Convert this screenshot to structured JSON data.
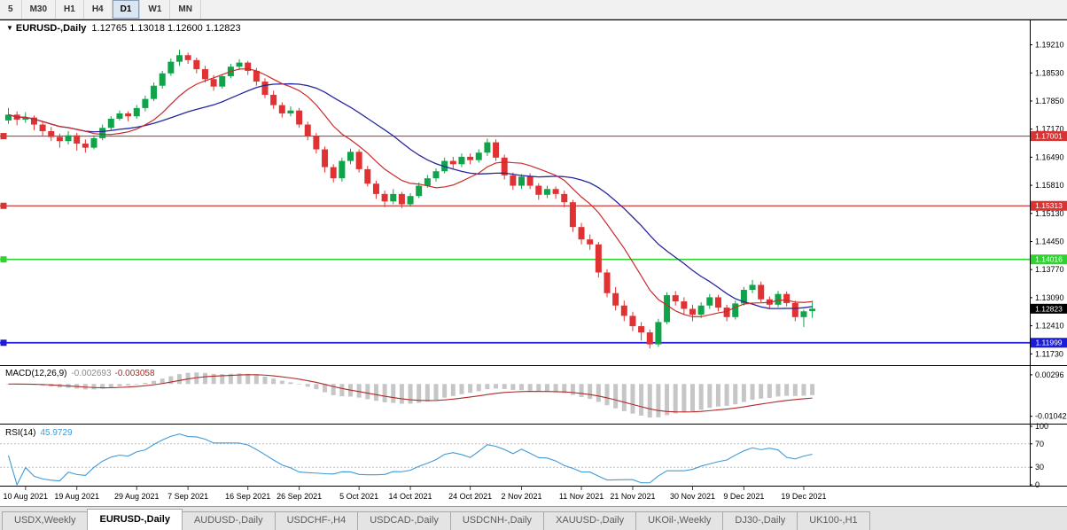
{
  "toolbar": {
    "timeframe_buttons": [
      "5",
      "M30",
      "H1",
      "H4",
      "D1",
      "W1",
      "MN"
    ],
    "active_timeframe": "D1"
  },
  "chart_header": {
    "dropdown_icon": "▼",
    "title": "EURUSD-,Daily",
    "ohlc": "1.12765 1.13018 1.12600 1.12823"
  },
  "indicator_labels": {
    "macd_title": "MACD(12,26,9)",
    "macd_main_value": "-0.002693",
    "macd_signal_value": "-0.003058",
    "rsi_title": "RSI(14)",
    "rsi_value": "45.9729"
  },
  "chart_data": {
    "type": "candlestick",
    "symbol": "EURUSD-",
    "period": "Daily",
    "price_axis_labels": [
      "1.19210",
      "1.18530",
      "1.17850",
      "1.17170",
      "1.16490",
      "1.15810",
      "1.15130",
      "1.14450",
      "1.13770",
      "1.13090",
      "1.12410",
      "1.11730"
    ],
    "macd_axis_labels": [
      "0.00296",
      "-0.01042"
    ],
    "rsi_axis_labels": [
      "100",
      "70",
      "30",
      "0"
    ],
    "rsi_levels": [
      70,
      30
    ],
    "date_labels": [
      "10 Aug 2021",
      "19 Aug 2021",
      "29 Aug 2021",
      "7 Sep 2021",
      "16 Sep 2021",
      "26 Sep 2021",
      "5 Oct 2021",
      "14 Oct 2021",
      "24 Oct 2021",
      "2 Nov 2021",
      "11 Nov 2021",
      "21 Nov 2021",
      "30 Nov 2021",
      "9 Dec 2021",
      "19 Dec 2021"
    ],
    "date_label_indices": [
      2,
      8,
      15,
      21,
      28,
      34,
      41,
      47,
      54,
      60,
      67,
      73,
      80,
      86,
      93
    ],
    "levels": [
      {
        "price": 1.17001,
        "label": "1.17001",
        "color": "#d83434",
        "width": 1.2
      },
      {
        "price": 1.15313,
        "label": "1.15313",
        "color": "#d83434",
        "width": 1.2
      },
      {
        "price": 1.14016,
        "label": "1.14016",
        "color": "#2fd32f",
        "width": 1.6
      },
      {
        "price": 1.11999,
        "label": "1.11999",
        "color": "#1b1bd8",
        "width": 1.8
      }
    ],
    "bid": {
      "price": 1.12823,
      "label": "1.12823",
      "bg": "#000000"
    },
    "colors": {
      "up": "#0fa34a",
      "down": "#e03232",
      "ma_fast": "#cc2929",
      "ma_slow": "#26269e",
      "macd_hist": "#c6c6c6",
      "macd_signal": "#b02a2a",
      "rsi": "#3f9bd8"
    },
    "ma_periods": {
      "fast": 10,
      "slow": 20
    },
    "macd_params": [
      12,
      26,
      9
    ],
    "rsi_period": 14,
    "candles": [
      [
        1.1738,
        1.1768,
        1.173,
        1.1752
      ],
      [
        1.1752,
        1.176,
        1.1726,
        1.174
      ],
      [
        1.174,
        1.1758,
        1.1732,
        1.1745
      ],
      [
        1.1745,
        1.175,
        1.1714,
        1.1728
      ],
      [
        1.1728,
        1.1736,
        1.17,
        1.1712
      ],
      [
        1.1712,
        1.1722,
        1.1688,
        1.1698
      ],
      [
        1.1698,
        1.1706,
        1.1672,
        1.1688
      ],
      [
        1.1688,
        1.1712,
        1.168,
        1.1702
      ],
      [
        1.1702,
        1.1708,
        1.1665,
        1.1682
      ],
      [
        1.1682,
        1.1692,
        1.166,
        1.1672
      ],
      [
        1.1672,
        1.1702,
        1.1668,
        1.1695
      ],
      [
        1.1695,
        1.1728,
        1.169,
        1.172
      ],
      [
        1.172,
        1.1748,
        1.1715,
        1.1742
      ],
      [
        1.1742,
        1.1762,
        1.1738,
        1.1755
      ],
      [
        1.1755,
        1.176,
        1.1736,
        1.1748
      ],
      [
        1.1748,
        1.1775,
        1.1742,
        1.1768
      ],
      [
        1.1768,
        1.1798,
        1.176,
        1.179
      ],
      [
        1.179,
        1.183,
        1.1785,
        1.1822
      ],
      [
        1.1822,
        1.1858,
        1.1815,
        1.1852
      ],
      [
        1.1852,
        1.1888,
        1.1846,
        1.188
      ],
      [
        1.188,
        1.1909,
        1.187,
        1.1896
      ],
      [
        1.1896,
        1.1902,
        1.1875,
        1.1884
      ],
      [
        1.1884,
        1.189,
        1.1852,
        1.1862
      ],
      [
        1.1862,
        1.187,
        1.183,
        1.1838
      ],
      [
        1.1838,
        1.1848,
        1.181,
        1.182
      ],
      [
        1.182,
        1.185,
        1.1815,
        1.1845
      ],
      [
        1.1845,
        1.1875,
        1.184,
        1.1868
      ],
      [
        1.1868,
        1.1886,
        1.186,
        1.1878
      ],
      [
        1.1878,
        1.1882,
        1.1848,
        1.1858
      ],
      [
        1.1858,
        1.1865,
        1.1822,
        1.1832
      ],
      [
        1.1832,
        1.184,
        1.1792,
        1.18
      ],
      [
        1.18,
        1.181,
        1.1766,
        1.1775
      ],
      [
        1.1775,
        1.1782,
        1.1745,
        1.1755
      ],
      [
        1.1755,
        1.1772,
        1.1748,
        1.1762
      ],
      [
        1.1762,
        1.1768,
        1.172,
        1.1728
      ],
      [
        1.1728,
        1.1735,
        1.169,
        1.17
      ],
      [
        1.17,
        1.1708,
        1.1658,
        1.1668
      ],
      [
        1.1668,
        1.1675,
        1.1612,
        1.1625
      ],
      [
        1.1625,
        1.1632,
        1.1588,
        1.1598
      ],
      [
        1.1598,
        1.1648,
        1.159,
        1.164
      ],
      [
        1.164,
        1.167,
        1.1632,
        1.1662
      ],
      [
        1.1662,
        1.1668,
        1.1612,
        1.162
      ],
      [
        1.162,
        1.1628,
        1.1578,
        1.1585
      ],
      [
        1.1585,
        1.1592,
        1.1548,
        1.156
      ],
      [
        1.156,
        1.1568,
        1.1528,
        1.1542
      ],
      [
        1.1542,
        1.1572,
        1.1535,
        1.156
      ],
      [
        1.156,
        1.1565,
        1.1526,
        1.1535
      ],
      [
        1.1535,
        1.1562,
        1.1529,
        1.1555
      ],
      [
        1.1555,
        1.1588,
        1.155,
        1.158
      ],
      [
        1.158,
        1.1606,
        1.1575,
        1.1598
      ],
      [
        1.1598,
        1.1622,
        1.159,
        1.1615
      ],
      [
        1.1615,
        1.1648,
        1.161,
        1.164
      ],
      [
        1.164,
        1.165,
        1.1622,
        1.1632
      ],
      [
        1.1632,
        1.1658,
        1.1625,
        1.165
      ],
      [
        1.165,
        1.1658,
        1.1632,
        1.1642
      ],
      [
        1.1642,
        1.1668,
        1.1636,
        1.166
      ],
      [
        1.166,
        1.1694,
        1.1652,
        1.1685
      ],
      [
        1.1685,
        1.1692,
        1.164,
        1.1648
      ],
      [
        1.1648,
        1.1655,
        1.1595,
        1.1605
      ],
      [
        1.1605,
        1.1612,
        1.157,
        1.158
      ],
      [
        1.158,
        1.1608,
        1.1572,
        1.1602
      ],
      [
        1.1602,
        1.161,
        1.1572,
        1.158
      ],
      [
        1.158,
        1.1586,
        1.1546,
        1.1558
      ],
      [
        1.1558,
        1.158,
        1.155,
        1.1572
      ],
      [
        1.1572,
        1.1578,
        1.1548,
        1.156
      ],
      [
        1.156,
        1.1568,
        1.1528,
        1.154
      ],
      [
        1.154,
        1.1546,
        1.1468,
        1.148
      ],
      [
        1.148,
        1.149,
        1.1438,
        1.145
      ],
      [
        1.145,
        1.1462,
        1.1425,
        1.1438
      ],
      [
        1.1438,
        1.1444,
        1.1358,
        1.137
      ],
      [
        1.137,
        1.1378,
        1.131,
        1.132
      ],
      [
        1.132,
        1.1335,
        1.1278,
        1.129
      ],
      [
        1.129,
        1.1302,
        1.1252,
        1.1265
      ],
      [
        1.1265,
        1.1275,
        1.1228,
        1.124
      ],
      [
        1.124,
        1.125,
        1.1205,
        1.1225
      ],
      [
        1.1225,
        1.1232,
        1.1186,
        1.1196
      ],
      [
        1.1196,
        1.1258,
        1.119,
        1.125
      ],
      [
        1.125,
        1.1322,
        1.1245,
        1.1315
      ],
      [
        1.1315,
        1.1325,
        1.129,
        1.13
      ],
      [
        1.13,
        1.131,
        1.1268,
        1.1282
      ],
      [
        1.1282,
        1.1292,
        1.1252,
        1.1268
      ],
      [
        1.1268,
        1.1298,
        1.126,
        1.129
      ],
      [
        1.129,
        1.1318,
        1.1282,
        1.131
      ],
      [
        1.131,
        1.1316,
        1.1276,
        1.1285
      ],
      [
        1.1285,
        1.1292,
        1.1252,
        1.1262
      ],
      [
        1.1262,
        1.1302,
        1.1256,
        1.1295
      ],
      [
        1.1295,
        1.1335,
        1.129,
        1.1328
      ],
      [
        1.1328,
        1.1352,
        1.132,
        1.134
      ],
      [
        1.134,
        1.1348,
        1.1298,
        1.1305
      ],
      [
        1.1305,
        1.1312,
        1.1282,
        1.1292
      ],
      [
        1.1292,
        1.1325,
        1.1286,
        1.1318
      ],
      [
        1.1318,
        1.1324,
        1.1288,
        1.1296
      ],
      [
        1.1296,
        1.1302,
        1.1252,
        1.1262
      ],
      [
        1.1262,
        1.128,
        1.1238,
        1.1276
      ],
      [
        1.12765,
        1.13018,
        1.126,
        1.12823
      ]
    ]
  },
  "bottom_tabs": {
    "items": [
      {
        "label": "USDX,Weekly",
        "active": false
      },
      {
        "label": "EURUSD-,Daily",
        "active": true
      },
      {
        "label": "AUDUSD-,Daily",
        "active": false
      },
      {
        "label": "USDCHF-,H4",
        "active": false
      },
      {
        "label": "USDCAD-,Daily",
        "active": false
      },
      {
        "label": "USDCNH-,Daily",
        "active": false
      },
      {
        "label": "XAUUSD-,Daily",
        "active": false
      },
      {
        "label": "UKOil-,Weekly",
        "active": false
      },
      {
        "label": "DJ30-,Daily",
        "active": false
      },
      {
        "label": "UK100-,H1",
        "active": false
      }
    ]
  }
}
